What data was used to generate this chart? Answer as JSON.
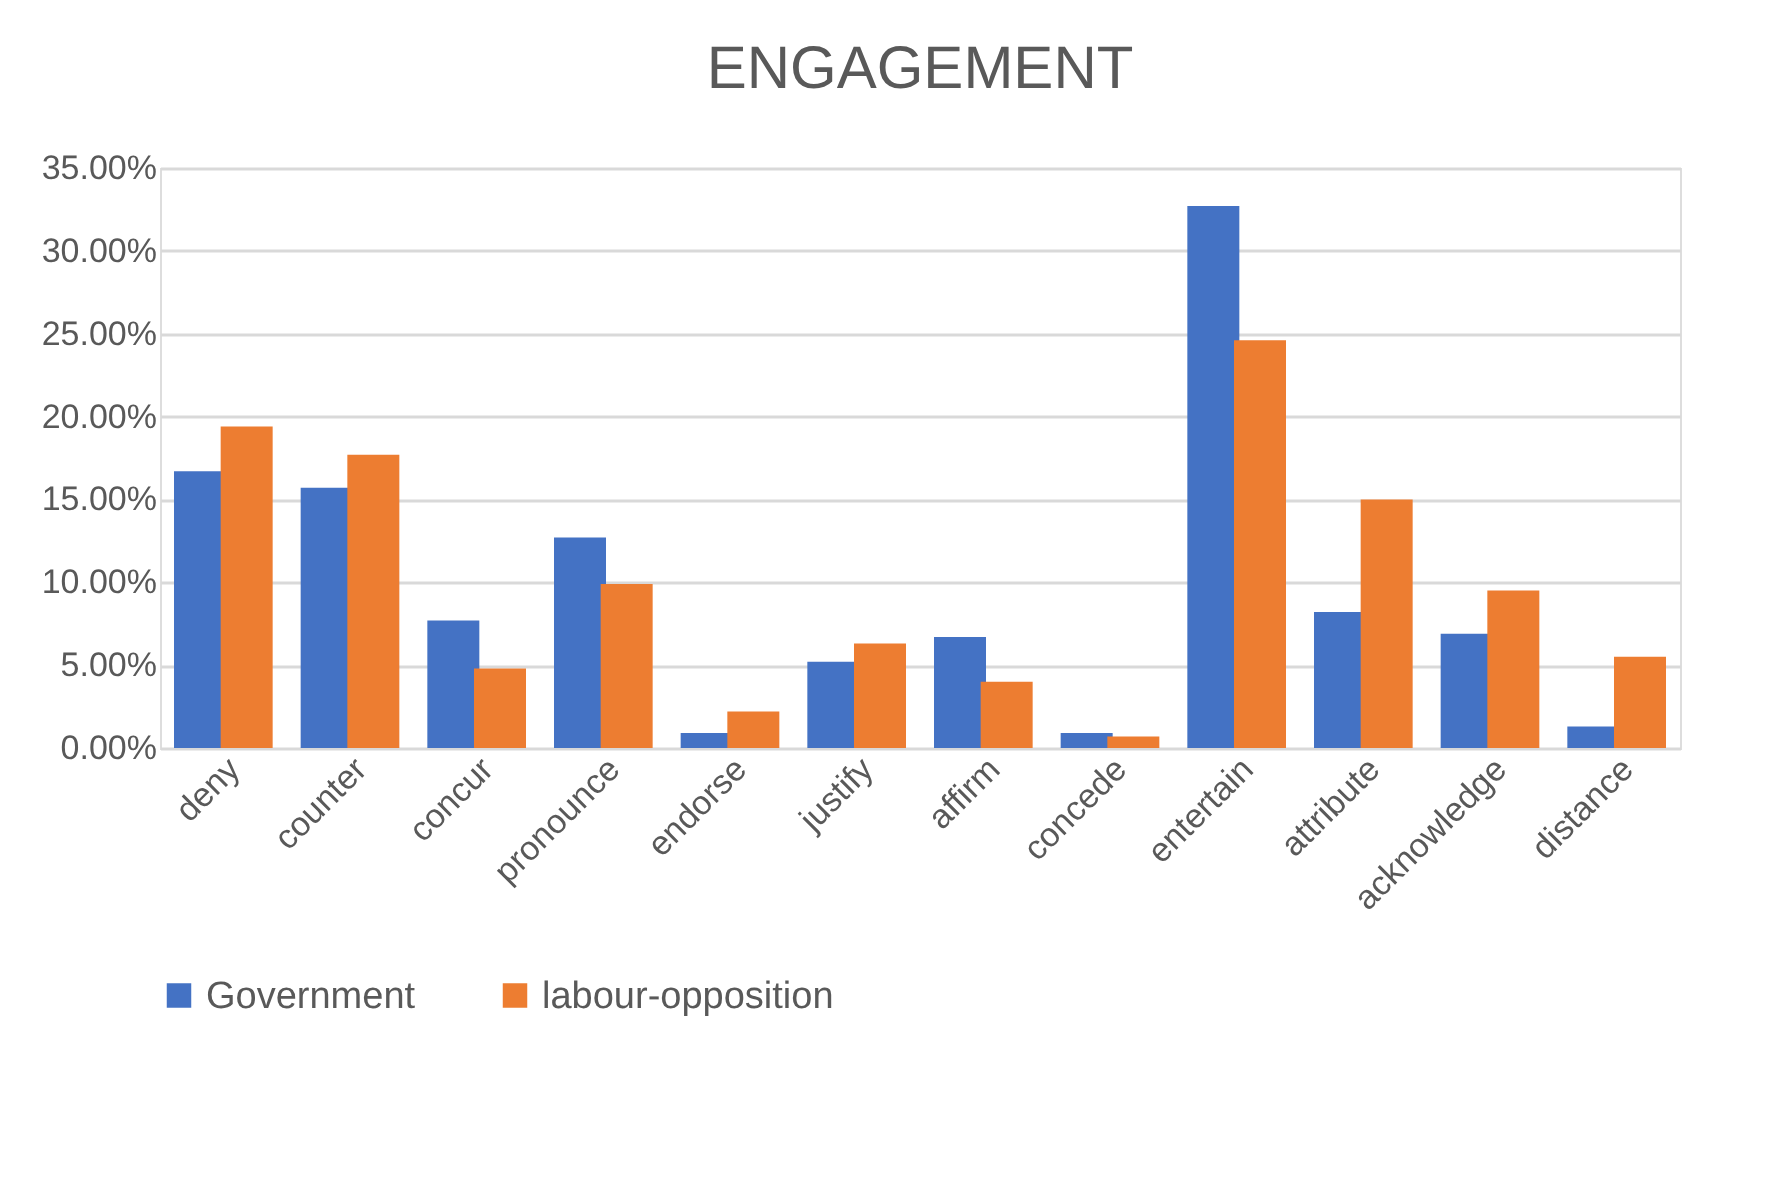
{
  "chart_data": {
    "type": "bar",
    "title": "ENGAGEMENT",
    "categories": [
      "deny",
      "counter",
      "concur",
      "pronounce",
      "endorse",
      "justify",
      "affirm",
      "concede",
      "entertain",
      "attribute",
      "acknowledge",
      "distance"
    ],
    "series": [
      {
        "name": "Government",
        "color": "#4472c4",
        "values": [
          16.7,
          15.7,
          7.7,
          12.7,
          0.9,
          5.2,
          6.7,
          0.9,
          32.7,
          8.2,
          6.9,
          1.3
        ]
      },
      {
        "name": "labour-opposition",
        "color": "#ed7d31",
        "values": [
          19.4,
          17.7,
          4.8,
          9.9,
          2.2,
          6.3,
          4.0,
          0.7,
          24.6,
          15.0,
          9.5,
          5.5
        ]
      }
    ],
    "ylim": [
      0,
      35
    ],
    "yticks": [
      {
        "value": 0,
        "label": "0.00%"
      },
      {
        "value": 5,
        "label": "5.00%"
      },
      {
        "value": 10,
        "label": "10.00%"
      },
      {
        "value": 15,
        "label": "15.00%"
      },
      {
        "value": 20,
        "label": "20.00%"
      },
      {
        "value": 25,
        "label": "25.00%"
      },
      {
        "value": 30,
        "label": "30.00%"
      },
      {
        "value": 35,
        "label": "35.00%"
      }
    ],
    "grid": "y",
    "legend": "bottom"
  }
}
